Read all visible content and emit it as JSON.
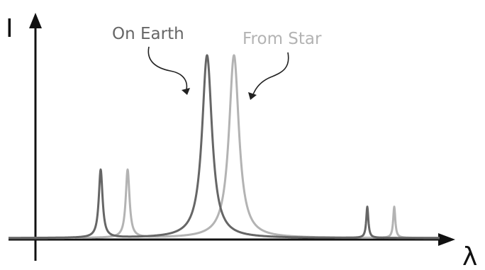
{
  "diagram": {
    "y_axis_label": "I",
    "x_axis_label": "λ",
    "labels": {
      "earth": "On Earth",
      "star": "From Star"
    },
    "colors": {
      "axis": "#111111",
      "earth": "#666666",
      "star": "#b3b3b3"
    }
  }
}
